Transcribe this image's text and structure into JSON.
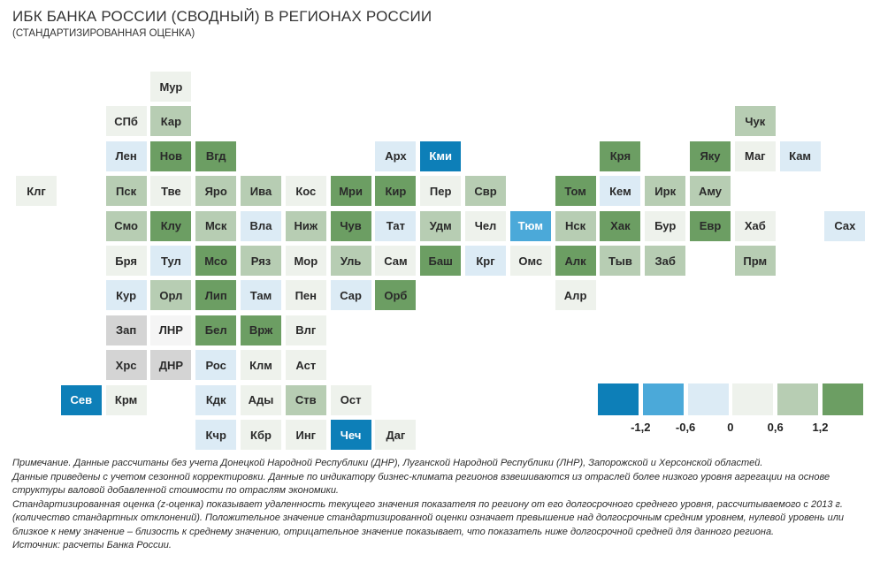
{
  "title": "ИБК БАНКА РОССИИ (СВОДНЫЙ) В РЕГИОНАХ РОССИИ",
  "subtitle": "(СТАНДАРТИЗИРОВАННАЯ ОЦЕНКА)",
  "chart_data": {
    "type": "heatmap",
    "title": "ИБК БАНКА РОССИИ (СВОДНЫЙ) В РЕГИОНАХ РОССИИ",
    "subtitle": "(СТАНДАРТИЗИРОВАННАЯ ОЦЕНКА)",
    "color_scale": {
      "bins": [
        "≤ -1,2",
        "-1,2…-0,6",
        "-0,6…0",
        "0…0,6",
        "0,6…1,2",
        "≥ 1,2"
      ],
      "colors": [
        "#0d7fb8",
        "#4ba9d9",
        "#dcebf5",
        "#eef2ec",
        "#b7cdb3",
        "#6c9e63"
      ],
      "tick_labels": [
        "-1,2",
        "-0,6",
        "0",
        "0,6",
        "1,2"
      ],
      "no_data_color": "#d4d4d4",
      "base_color": "#f5f5f5"
    },
    "regions": [
      {
        "label": "Мур",
        "row": 0,
        "col": 3,
        "bin": 3
      },
      {
        "label": "СПб",
        "row": 1,
        "col": 2,
        "bin": 3
      },
      {
        "label": "Кар",
        "row": 1,
        "col": 3,
        "bin": 4
      },
      {
        "label": "Чук",
        "row": 1,
        "col": 16,
        "bin": 4
      },
      {
        "label": "Лен",
        "row": 2,
        "col": 2,
        "bin": 2
      },
      {
        "label": "Нов",
        "row": 2,
        "col": 3,
        "bin": 5
      },
      {
        "label": "Вгд",
        "row": 2,
        "col": 4,
        "bin": 5
      },
      {
        "label": "Арх",
        "row": 2,
        "col": 8,
        "bin": 2
      },
      {
        "label": "Кми",
        "row": 2,
        "col": 9,
        "bin": 0
      },
      {
        "label": "Кря",
        "row": 2,
        "col": 13,
        "bin": 5
      },
      {
        "label": "Яку",
        "row": 2,
        "col": 15,
        "bin": 5
      },
      {
        "label": "Маг",
        "row": 2,
        "col": 16,
        "bin": 3
      },
      {
        "label": "Кам",
        "row": 2,
        "col": 17,
        "bin": 2
      },
      {
        "label": "Клг",
        "row": 3,
        "col": 0,
        "bin": 3
      },
      {
        "label": "Пск",
        "row": 3,
        "col": 2,
        "bin": 4
      },
      {
        "label": "Тве",
        "row": 3,
        "col": 3,
        "bin": 3
      },
      {
        "label": "Яро",
        "row": 3,
        "col": 4,
        "bin": 4
      },
      {
        "label": "Ива",
        "row": 3,
        "col": 5,
        "bin": 4
      },
      {
        "label": "Кос",
        "row": 3,
        "col": 6,
        "bin": 3
      },
      {
        "label": "Мри",
        "row": 3,
        "col": 7,
        "bin": 5
      },
      {
        "label": "Кир",
        "row": 3,
        "col": 8,
        "bin": 5
      },
      {
        "label": "Пер",
        "row": 3,
        "col": 9,
        "bin": 3
      },
      {
        "label": "Свр",
        "row": 3,
        "col": 10,
        "bin": 4
      },
      {
        "label": "Том",
        "row": 3,
        "col": 12,
        "bin": 5
      },
      {
        "label": "Кем",
        "row": 3,
        "col": 13,
        "bin": 2
      },
      {
        "label": "Ирк",
        "row": 3,
        "col": 14,
        "bin": 4
      },
      {
        "label": "Аму",
        "row": 3,
        "col": 15,
        "bin": 4
      },
      {
        "label": "Смо",
        "row": 4,
        "col": 2,
        "bin": 4
      },
      {
        "label": "Клу",
        "row": 4,
        "col": 3,
        "bin": 5
      },
      {
        "label": "Мск",
        "row": 4,
        "col": 4,
        "bin": 4
      },
      {
        "label": "Вла",
        "row": 4,
        "col": 5,
        "bin": 2
      },
      {
        "label": "Ниж",
        "row": 4,
        "col": 6,
        "bin": 4
      },
      {
        "label": "Чув",
        "row": 4,
        "col": 7,
        "bin": 5
      },
      {
        "label": "Тат",
        "row": 4,
        "col": 8,
        "bin": 2
      },
      {
        "label": "Удм",
        "row": 4,
        "col": 9,
        "bin": 4
      },
      {
        "label": "Чел",
        "row": 4,
        "col": 10,
        "bin": 3
      },
      {
        "label": "Тюм",
        "row": 4,
        "col": 11,
        "bin": 1
      },
      {
        "label": "Нск",
        "row": 4,
        "col": 12,
        "bin": 4
      },
      {
        "label": "Хак",
        "row": 4,
        "col": 13,
        "bin": 5
      },
      {
        "label": "Бур",
        "row": 4,
        "col": 14,
        "bin": 3
      },
      {
        "label": "Евр",
        "row": 4,
        "col": 15,
        "bin": 5
      },
      {
        "label": "Хаб",
        "row": 4,
        "col": 16,
        "bin": 3
      },
      {
        "label": "Сах",
        "row": 4,
        "col": 18,
        "bin": 2
      },
      {
        "label": "Бря",
        "row": 5,
        "col": 2,
        "bin": 3
      },
      {
        "label": "Тул",
        "row": 5,
        "col": 3,
        "bin": 2
      },
      {
        "label": "Мсо",
        "row": 5,
        "col": 4,
        "bin": 5
      },
      {
        "label": "Ряз",
        "row": 5,
        "col": 5,
        "bin": 4
      },
      {
        "label": "Мор",
        "row": 5,
        "col": 6,
        "bin": 3
      },
      {
        "label": "Уль",
        "row": 5,
        "col": 7,
        "bin": 4
      },
      {
        "label": "Сам",
        "row": 5,
        "col": 8,
        "bin": 3
      },
      {
        "label": "Баш",
        "row": 5,
        "col": 9,
        "bin": 5
      },
      {
        "label": "Крг",
        "row": 5,
        "col": 10,
        "bin": 2
      },
      {
        "label": "Омс",
        "row": 5,
        "col": 11,
        "bin": 3
      },
      {
        "label": "Алк",
        "row": 5,
        "col": 12,
        "bin": 5
      },
      {
        "label": "Тыв",
        "row": 5,
        "col": 13,
        "bin": 4
      },
      {
        "label": "Заб",
        "row": 5,
        "col": 14,
        "bin": 4
      },
      {
        "label": "Прм",
        "row": 5,
        "col": 16,
        "bin": 4
      },
      {
        "label": "Кур",
        "row": 6,
        "col": 2,
        "bin": 2
      },
      {
        "label": "Орл",
        "row": 6,
        "col": 3,
        "bin": 4
      },
      {
        "label": "Лип",
        "row": 6,
        "col": 4,
        "bin": 5
      },
      {
        "label": "Там",
        "row": 6,
        "col": 5,
        "bin": 2
      },
      {
        "label": "Пен",
        "row": 6,
        "col": 6,
        "bin": 3
      },
      {
        "label": "Сар",
        "row": 6,
        "col": 7,
        "bin": 2
      },
      {
        "label": "Орб",
        "row": 6,
        "col": 8,
        "bin": 5
      },
      {
        "label": "Алр",
        "row": 6,
        "col": 12,
        "bin": 3
      },
      {
        "label": "Зап",
        "row": 7,
        "col": 2,
        "bin": "nd"
      },
      {
        "label": "ЛНР",
        "row": 7,
        "col": 3,
        "bin": "base"
      },
      {
        "label": "Бел",
        "row": 7,
        "col": 4,
        "bin": 5
      },
      {
        "label": "Врж",
        "row": 7,
        "col": 5,
        "bin": 5
      },
      {
        "label": "Влг",
        "row": 7,
        "col": 6,
        "bin": 3
      },
      {
        "label": "Хрс",
        "row": 8,
        "col": 2,
        "bin": "nd"
      },
      {
        "label": "ДНР",
        "row": 8,
        "col": 3,
        "bin": "nd"
      },
      {
        "label": "Рос",
        "row": 8,
        "col": 4,
        "bin": 2
      },
      {
        "label": "Клм",
        "row": 8,
        "col": 5,
        "bin": 3
      },
      {
        "label": "Аст",
        "row": 8,
        "col": 6,
        "bin": 3
      },
      {
        "label": "Сев",
        "row": 9,
        "col": 1,
        "bin": 0
      },
      {
        "label": "Крм",
        "row": 9,
        "col": 2,
        "bin": 3
      },
      {
        "label": "Кдк",
        "row": 9,
        "col": 4,
        "bin": 2
      },
      {
        "label": "Ады",
        "row": 9,
        "col": 5,
        "bin": 3
      },
      {
        "label": "Ств",
        "row": 9,
        "col": 6,
        "bin": 4
      },
      {
        "label": "Ост",
        "row": 9,
        "col": 7,
        "bin": 3
      },
      {
        "label": "Кчр",
        "row": 10,
        "col": 4,
        "bin": 2
      },
      {
        "label": "Кбр",
        "row": 10,
        "col": 5,
        "bin": 3
      },
      {
        "label": "Инг",
        "row": 10,
        "col": 6,
        "bin": 3
      },
      {
        "label": "Чеч",
        "row": 10,
        "col": 7,
        "bin": 0
      },
      {
        "label": "Даг",
        "row": 10,
        "col": 8,
        "bin": 3
      }
    ]
  },
  "notes": [
    "Примечание. Данные рассчитаны без учета Донецкой Народной Республики (ДНР), Луганской Народной Республики (ЛНР), Запорожской и Херсонской областей.",
    "Данные приведены с учетом сезонной корректировки. Данные по индикатору бизнес-климата регионов взвешиваются из отраслей более низкого уровня агрегации на основе структуры валовой добавленной стоимости по отраслям экономики.",
    "Стандартизированная оценка (z-оценка) показывает удаленность текущего значения показателя по региону от его долгосрочного среднего уровня, рассчитываемого с 2013 г. (количество стандартных отклонений). Положительное значение стандартизированной оценки означает превышение над долгосрочным средним уровнем, нулевой уровень или близкое к нему значение – близость к среднему значению, отрицательное значение показывает, что показатель ниже долгосрочной средней для данного региона.",
    "Источник: расчеты Банка России."
  ]
}
